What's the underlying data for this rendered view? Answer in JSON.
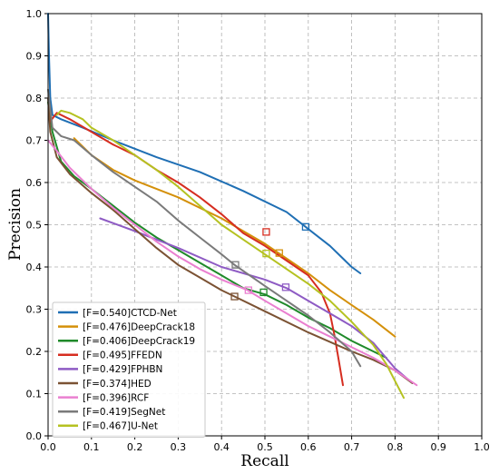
{
  "chart_data": {
    "type": "line",
    "title": "",
    "xlabel": "Recall",
    "ylabel": "Precision",
    "xlim": [
      0.0,
      1.0
    ],
    "ylim": [
      0.0,
      1.0
    ],
    "xticks": [
      "0.0",
      "0.1",
      "0.2",
      "0.3",
      "0.4",
      "0.5",
      "0.6",
      "0.7",
      "0.8",
      "0.9",
      "1.0"
    ],
    "yticks": [
      "0.0",
      "0.1",
      "0.2",
      "0.3",
      "0.4",
      "0.5",
      "0.6",
      "0.7",
      "0.8",
      "0.9",
      "1.0"
    ],
    "grid": true,
    "legend_position": "bottom-left",
    "series": [
      {
        "name": "[F=0.540]CTCD-Net",
        "color": "#1f6fb4",
        "points": [
          [
            0.0,
            1.0
          ],
          [
            0.002,
            0.9
          ],
          [
            0.005,
            0.8
          ],
          [
            0.01,
            0.76
          ],
          [
            0.03,
            0.75
          ],
          [
            0.08,
            0.73
          ],
          [
            0.15,
            0.7
          ],
          [
            0.25,
            0.66
          ],
          [
            0.35,
            0.625
          ],
          [
            0.45,
            0.58
          ],
          [
            0.55,
            0.53
          ],
          [
            0.6,
            0.49
          ],
          [
            0.65,
            0.45
          ],
          [
            0.7,
            0.4
          ],
          [
            0.72,
            0.385
          ]
        ],
        "marker": [
          0.594,
          0.495
        ]
      },
      {
        "name": "[F=0.476]DeepCrack18",
        "color": "#d4900a",
        "points": [
          [
            0.06,
            0.705
          ],
          [
            0.1,
            0.665
          ],
          [
            0.15,
            0.63
          ],
          [
            0.2,
            0.605
          ],
          [
            0.3,
            0.565
          ],
          [
            0.4,
            0.515
          ],
          [
            0.45,
            0.485
          ],
          [
            0.5,
            0.455
          ],
          [
            0.55,
            0.42
          ],
          [
            0.6,
            0.385
          ],
          [
            0.65,
            0.345
          ],
          [
            0.7,
            0.31
          ],
          [
            0.75,
            0.275
          ],
          [
            0.8,
            0.235
          ]
        ],
        "marker": [
          0.533,
          0.433
        ]
      },
      {
        "name": "[F=0.406]DeepCrack19",
        "color": "#1f8a2a",
        "points": [
          [
            0.0,
            0.79
          ],
          [
            0.01,
            0.72
          ],
          [
            0.03,
            0.65
          ],
          [
            0.06,
            0.615
          ],
          [
            0.1,
            0.585
          ],
          [
            0.15,
            0.545
          ],
          [
            0.2,
            0.505
          ],
          [
            0.25,
            0.47
          ],
          [
            0.3,
            0.44
          ],
          [
            0.35,
            0.41
          ],
          [
            0.4,
            0.38
          ],
          [
            0.45,
            0.35
          ],
          [
            0.5,
            0.335
          ],
          [
            0.55,
            0.31
          ],
          [
            0.6,
            0.28
          ],
          [
            0.65,
            0.255
          ],
          [
            0.7,
            0.225
          ],
          [
            0.75,
            0.2
          ],
          [
            0.78,
            0.185
          ]
        ],
        "marker": [
          0.497,
          0.34
        ]
      },
      {
        "name": "[F=0.495]FFEDN",
        "color": "#d62d20",
        "points": [
          [
            0.005,
            0.745
          ],
          [
            0.02,
            0.765
          ],
          [
            0.05,
            0.75
          ],
          [
            0.1,
            0.72
          ],
          [
            0.15,
            0.69
          ],
          [
            0.2,
            0.665
          ],
          [
            0.25,
            0.63
          ],
          [
            0.3,
            0.6
          ],
          [
            0.35,
            0.565
          ],
          [
            0.4,
            0.525
          ],
          [
            0.45,
            0.48
          ],
          [
            0.5,
            0.45
          ],
          [
            0.55,
            0.415
          ],
          [
            0.6,
            0.38
          ],
          [
            0.63,
            0.34
          ],
          [
            0.65,
            0.29
          ],
          [
            0.66,
            0.24
          ],
          [
            0.67,
            0.18
          ],
          [
            0.68,
            0.12
          ]
        ],
        "marker": [
          0.503,
          0.483
        ]
      },
      {
        "name": "[F=0.429]FPHBN",
        "color": "#8e5bc4",
        "points": [
          [
            0.12,
            0.515
          ],
          [
            0.2,
            0.485
          ],
          [
            0.3,
            0.445
          ],
          [
            0.4,
            0.4
          ],
          [
            0.5,
            0.37
          ],
          [
            0.55,
            0.35
          ],
          [
            0.6,
            0.32
          ],
          [
            0.65,
            0.29
          ],
          [
            0.7,
            0.26
          ],
          [
            0.75,
            0.22
          ],
          [
            0.8,
            0.16
          ],
          [
            0.84,
            0.125
          ]
        ],
        "marker": [
          0.548,
          0.352
        ]
      },
      {
        "name": "[F=0.374]HED",
        "color": "#7b5233",
        "points": [
          [
            0.0,
            0.8
          ],
          [
            0.005,
            0.72
          ],
          [
            0.02,
            0.66
          ],
          [
            0.05,
            0.62
          ],
          [
            0.1,
            0.575
          ],
          [
            0.15,
            0.535
          ],
          [
            0.2,
            0.49
          ],
          [
            0.25,
            0.445
          ],
          [
            0.3,
            0.405
          ],
          [
            0.35,
            0.375
          ],
          [
            0.4,
            0.345
          ],
          [
            0.43,
            0.33
          ],
          [
            0.5,
            0.295
          ],
          [
            0.6,
            0.245
          ],
          [
            0.7,
            0.2
          ],
          [
            0.75,
            0.18
          ],
          [
            0.8,
            0.155
          ],
          [
            0.84,
            0.125
          ]
        ],
        "marker": [
          0.43,
          0.33
        ]
      },
      {
        "name": "[F=0.396]RCF",
        "color": "#ea7fd0",
        "points": [
          [
            0.0,
            0.7
          ],
          [
            0.02,
            0.675
          ],
          [
            0.05,
            0.635
          ],
          [
            0.1,
            0.585
          ],
          [
            0.15,
            0.54
          ],
          [
            0.2,
            0.5
          ],
          [
            0.25,
            0.46
          ],
          [
            0.3,
            0.425
          ],
          [
            0.35,
            0.395
          ],
          [
            0.4,
            0.37
          ],
          [
            0.46,
            0.345
          ],
          [
            0.5,
            0.32
          ],
          [
            0.55,
            0.29
          ],
          [
            0.6,
            0.26
          ],
          [
            0.65,
            0.235
          ],
          [
            0.7,
            0.21
          ],
          [
            0.75,
            0.185
          ],
          [
            0.8,
            0.155
          ],
          [
            0.85,
            0.12
          ]
        ],
        "marker": [
          0.462,
          0.345
        ]
      },
      {
        "name": "[F=0.419]SegNet",
        "color": "#7a7a7a",
        "points": [
          [
            0.0,
            0.82
          ],
          [
            0.01,
            0.73
          ],
          [
            0.03,
            0.71
          ],
          [
            0.06,
            0.7
          ],
          [
            0.1,
            0.665
          ],
          [
            0.15,
            0.625
          ],
          [
            0.2,
            0.59
          ],
          [
            0.25,
            0.555
          ],
          [
            0.3,
            0.51
          ],
          [
            0.35,
            0.47
          ],
          [
            0.4,
            0.43
          ],
          [
            0.43,
            0.405
          ],
          [
            0.5,
            0.355
          ],
          [
            0.55,
            0.32
          ],
          [
            0.6,
            0.285
          ],
          [
            0.65,
            0.245
          ],
          [
            0.7,
            0.2
          ],
          [
            0.72,
            0.165
          ]
        ],
        "marker": [
          0.432,
          0.405
        ]
      },
      {
        "name": "[F=0.467]U-Net",
        "color": "#b5c221",
        "points": [
          [
            0.02,
            0.76
          ],
          [
            0.03,
            0.77
          ],
          [
            0.05,
            0.765
          ],
          [
            0.08,
            0.75
          ],
          [
            0.1,
            0.73
          ],
          [
            0.15,
            0.7
          ],
          [
            0.2,
            0.665
          ],
          [
            0.25,
            0.63
          ],
          [
            0.3,
            0.59
          ],
          [
            0.35,
            0.545
          ],
          [
            0.4,
            0.5
          ],
          [
            0.45,
            0.465
          ],
          [
            0.5,
            0.43
          ],
          [
            0.55,
            0.395
          ],
          [
            0.6,
            0.36
          ],
          [
            0.65,
            0.32
          ],
          [
            0.7,
            0.27
          ],
          [
            0.75,
            0.215
          ],
          [
            0.78,
            0.17
          ],
          [
            0.8,
            0.13
          ],
          [
            0.82,
            0.09
          ]
        ],
        "marker": [
          0.503,
          0.432
        ]
      }
    ]
  }
}
